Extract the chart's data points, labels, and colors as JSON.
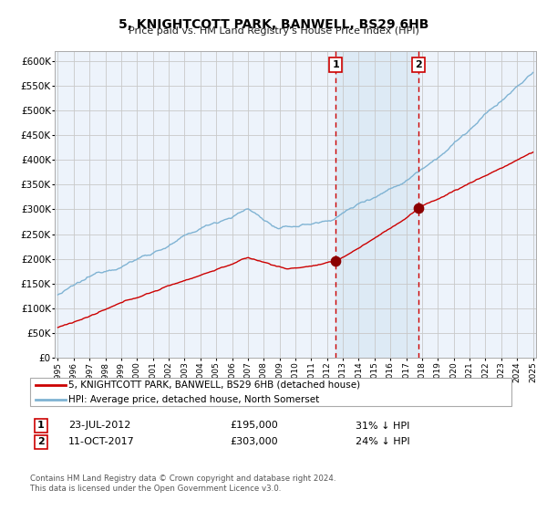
{
  "title": "5, KNIGHTCOTT PARK, BANWELL, BS29 6HB",
  "subtitle": "Price paid vs. HM Land Registry's House Price Index (HPI)",
  "legend_line1": "5, KNIGHTCOTT PARK, BANWELL, BS29 6HB (detached house)",
  "legend_line2": "HPI: Average price, detached house, North Somerset",
  "annotation1_label": "1",
  "annotation1_date": "23-JUL-2012",
  "annotation1_price": "£195,000",
  "annotation1_pct": "31% ↓ HPI",
  "annotation2_label": "2",
  "annotation2_date": "11-OCT-2017",
  "annotation2_price": "£303,000",
  "annotation2_pct": "24% ↓ HPI",
  "footer_line1": "Contains HM Land Registry data © Crown copyright and database right 2024.",
  "footer_line2": "This data is licensed under the Open Government Licence v3.0.",
  "hpi_color": "#7fb3d3",
  "price_color": "#cc0000",
  "dot_color": "#8b0000",
  "vline_color": "#cc0000",
  "shade_color": "#ddeaf5",
  "bg_color": "#edf3fb",
  "grid_color": "#c8c8c8",
  "ylim": [
    0,
    620000
  ],
  "yticks": [
    0,
    50000,
    100000,
    150000,
    200000,
    250000,
    300000,
    350000,
    400000,
    450000,
    500000,
    550000,
    600000
  ],
  "year_start": 1995,
  "year_end": 2025,
  "sale1_year": 2012.55,
  "sale2_year": 2017.78,
  "sale1_price": 195000,
  "sale2_price": 303000
}
